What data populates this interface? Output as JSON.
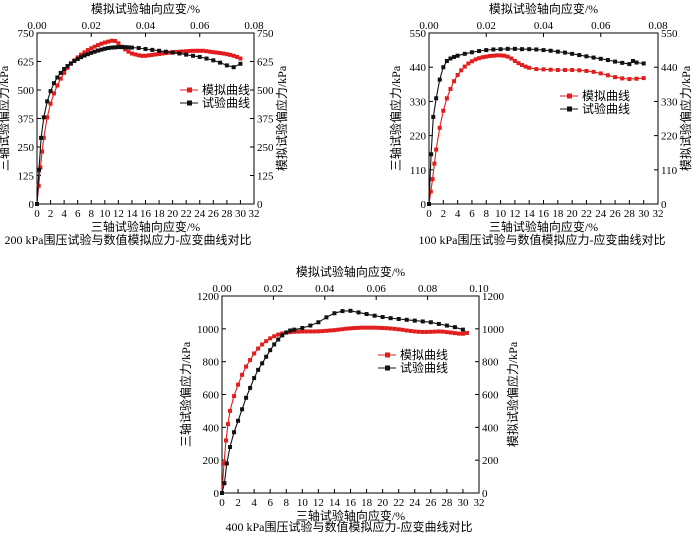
{
  "colors": {
    "simulated": "#e21d1d",
    "experimental": "#111111",
    "axis": "#000000"
  },
  "chart_data": [
    {
      "type": "line",
      "caption": "200 kPa围压试验与数值模拟应力-应变曲线对比",
      "xlabel": "三轴试验轴向应变/%",
      "ylabel": "三轴试验偏应力/kPa",
      "x2label": "模拟试验轴向应变/%",
      "y2label": "模拟试验偏应力/kPa",
      "xlim": [
        0,
        32
      ],
      "ylim": [
        0,
        750
      ],
      "x2lim": [
        0,
        0.08
      ],
      "xticks": [
        "0",
        "2",
        "4",
        "6",
        "8",
        "10",
        "12",
        "14",
        "16",
        "18",
        "20",
        "22",
        "24",
        "26",
        "28",
        "30",
        "32"
      ],
      "yticks": [
        "0",
        "125",
        "250",
        "375",
        "500",
        "625",
        "750"
      ],
      "x2ticks": [
        "0.00",
        "0.02",
        "0.04",
        "0.06",
        "0.08"
      ],
      "y2ticks": [
        "0",
        "125",
        "250",
        "375",
        "500",
        "625",
        "750"
      ],
      "legend_position": "right",
      "series": [
        {
          "name": "模拟曲线",
          "color": "#e21d1d",
          "x": [
            0,
            0.25,
            0.5,
            0.75,
            1,
            1.5,
            2,
            2.5,
            3,
            3.5,
            4,
            4.5,
            5,
            5.5,
            6,
            6.5,
            7,
            7.5,
            8,
            8.5,
            9,
            9.5,
            10,
            10.5,
            11,
            11.5,
            12,
            12.5,
            13,
            13.5,
            14,
            14.5,
            15,
            15.5,
            16,
            16.5,
            17,
            17.5,
            18,
            18.5,
            19,
            19.5,
            20,
            20.5,
            21,
            21.5,
            22,
            22.5,
            23,
            23.5,
            24,
            24.5,
            25,
            25.5,
            26,
            26.5,
            27,
            27.5,
            28,
            28.5,
            29,
            29.5,
            30
          ],
          "y": [
            0,
            80,
            160,
            230,
            290,
            380,
            440,
            485,
            520,
            550,
            575,
            597,
            615,
            630,
            643,
            655,
            665,
            675,
            683,
            690,
            697,
            703,
            708,
            712,
            716,
            715,
            705,
            690,
            678,
            668,
            660,
            656,
            652,
            650,
            650,
            652,
            654,
            656,
            658,
            660,
            662,
            664,
            666,
            667,
            668,
            669,
            670,
            671,
            672,
            672,
            672,
            672,
            670,
            668,
            666,
            664,
            662,
            660,
            657,
            654,
            650,
            645,
            638
          ]
        },
        {
          "name": "试验曲线",
          "color": "#111111",
          "x": [
            0,
            0.3,
            0.6,
            1,
            1.5,
            2,
            2.5,
            3,
            3.5,
            4,
            4.5,
            5,
            5.5,
            6,
            6.5,
            7,
            7.5,
            8,
            8.5,
            9,
            9.5,
            10,
            10.5,
            11,
            11.5,
            12,
            12.5,
            13,
            13.5,
            14,
            15,
            16,
            17,
            18,
            19,
            20,
            21,
            22,
            23,
            24,
            25,
            26,
            27,
            28,
            29,
            30
          ],
          "y": [
            0,
            150,
            290,
            380,
            450,
            495,
            530,
            555,
            575,
            592,
            605,
            617,
            627,
            636,
            644,
            651,
            657,
            663,
            668,
            673,
            677,
            681,
            684,
            686,
            687,
            688,
            688,
            688,
            687,
            686,
            684,
            680,
            676,
            672,
            668,
            664,
            660,
            655,
            650,
            645,
            638,
            630,
            620,
            608,
            600,
            615
          ]
        }
      ]
    },
    {
      "type": "line",
      "caption": "100 kPa围压试验与数值模拟应力-应变曲线对比",
      "xlabel": "三轴试验轴向应变/%",
      "ylabel": "三轴试验偏应力/kPa",
      "x2label": "模拟试验轴向应变/%",
      "y2label": "模拟试验偏应力/kPa",
      "xlim": [
        0,
        32
      ],
      "ylim": [
        0,
        550
      ],
      "x2lim": [
        0,
        0.08
      ],
      "xticks": [
        "0",
        "2",
        "4",
        "6",
        "8",
        "10",
        "12",
        "14",
        "16",
        "18",
        "20",
        "22",
        "24",
        "26",
        "28",
        "30",
        "32"
      ],
      "yticks": [
        "0",
        "110",
        "220",
        "330",
        "440",
        "550"
      ],
      "x2ticks": [
        "0.00",
        "0.02",
        "0.04",
        "0.06",
        "0.08"
      ],
      "y2ticks": [
        "0",
        "110",
        "220",
        "330",
        "440",
        "550"
      ],
      "legend_position": "right",
      "series": [
        {
          "name": "模拟曲线",
          "color": "#e21d1d",
          "x": [
            0,
            0.25,
            0.5,
            0.75,
            1,
            1.5,
            2,
            2.5,
            3,
            3.5,
            4,
            4.5,
            5,
            5.5,
            6,
            6.5,
            7,
            7.5,
            8,
            8.5,
            9,
            9.5,
            10,
            10.5,
            11,
            11.5,
            12,
            12.5,
            13,
            13.5,
            14,
            15,
            16,
            17,
            18,
            19,
            20,
            21,
            22,
            23,
            24,
            25,
            26,
            27,
            28,
            29,
            30
          ],
          "y": [
            0,
            40,
            80,
            130,
            175,
            245,
            300,
            340,
            370,
            395,
            415,
            430,
            442,
            452,
            459,
            465,
            469,
            472,
            474,
            476,
            477,
            478,
            478,
            477,
            474,
            468,
            460,
            453,
            447,
            442,
            438,
            434,
            433,
            432,
            431,
            431,
            431,
            430,
            428,
            425,
            420,
            414,
            408,
            404,
            402,
            403,
            405
          ]
        },
        {
          "name": "试验曲线",
          "color": "#111111",
          "x": [
            0,
            0.3,
            0.6,
            1,
            1.5,
            2,
            2.5,
            3,
            3.5,
            4,
            5,
            6,
            7,
            8,
            9,
            10,
            11,
            12,
            13,
            14,
            15,
            16,
            17,
            18,
            19,
            20,
            21,
            22,
            23,
            24,
            25,
            26,
            27,
            28,
            28.5,
            29,
            30
          ],
          "y": [
            0,
            160,
            280,
            340,
            400,
            440,
            460,
            468,
            473,
            477,
            483,
            488,
            492,
            495,
            497,
            498,
            499,
            499,
            498,
            498,
            497,
            495,
            493,
            490,
            487,
            483,
            479,
            475,
            471,
            467,
            463,
            458,
            454,
            450,
            460,
            455,
            452
          ]
        }
      ]
    },
    {
      "type": "line",
      "caption": "400 kPa围压试验与数值模拟应力-应变曲线对比",
      "xlabel": "三轴试验轴向应变/%",
      "ylabel": "三轴试验偏应力/kPa",
      "x2label": "模拟试验轴向应变/%",
      "y2label": "模拟试验偏应力/kPa",
      "xlim": [
        0,
        32
      ],
      "ylim": [
        0,
        1200
      ],
      "x2lim": [
        0,
        0.1
      ],
      "xticks": [
        "0",
        "2",
        "4",
        "6",
        "8",
        "10",
        "12",
        "14",
        "16",
        "18",
        "20",
        "22",
        "24",
        "26",
        "28",
        "30",
        "32"
      ],
      "yticks": [
        "0",
        "200",
        "400",
        "600",
        "800",
        "1000",
        "1200"
      ],
      "x2ticks": [
        "0.00",
        "0.02",
        "0.04",
        "0.06",
        "0.08",
        "0.10"
      ],
      "y2ticks": [
        "0",
        "200",
        "400",
        "600",
        "800",
        "1000",
        "1200"
      ],
      "legend_position": "right",
      "series": [
        {
          "name": "模拟曲线",
          "color": "#e21d1d",
          "x": [
            0,
            0.25,
            0.5,
            0.75,
            1,
            1.5,
            2,
            2.5,
            3,
            3.5,
            4,
            4.5,
            5,
            5.5,
            6,
            6.5,
            7,
            7.5,
            8,
            8.5,
            9,
            9.5,
            10,
            10.5,
            11,
            11.5,
            12,
            12.5,
            13,
            13.5,
            14,
            14.5,
            15,
            15.5,
            16,
            16.5,
            17,
            17.5,
            18,
            18.5,
            19,
            19.5,
            20,
            20.5,
            21,
            21.5,
            22,
            22.5,
            23,
            23.5,
            24,
            24.5,
            25,
            25.5,
            26,
            26.5,
            27,
            27.5,
            28,
            28.5,
            29,
            29.5,
            30,
            30.5
          ],
          "y": [
            0,
            180,
            320,
            420,
            500,
            590,
            660,
            720,
            770,
            810,
            850,
            880,
            905,
            925,
            942,
            955,
            965,
            972,
            977,
            980,
            982,
            983,
            984,
            984,
            984,
            984,
            985,
            986,
            988,
            990,
            992,
            995,
            998,
            1001,
            1003,
            1005,
            1006,
            1007,
            1007,
            1007,
            1007,
            1006,
            1005,
            1004,
            1002,
            1000,
            997,
            994,
            990,
            987,
            984,
            982,
            981,
            981,
            982,
            983,
            984,
            983,
            980,
            977,
            974,
            971,
            970,
            975
          ]
        },
        {
          "name": "试验曲线",
          "color": "#111111",
          "x": [
            0,
            0.3,
            0.6,
            1,
            1.5,
            2,
            2.5,
            3,
            3.5,
            4,
            4.5,
            5,
            5.5,
            6,
            6.5,
            7,
            7.5,
            8,
            8.5,
            9,
            10,
            11,
            12,
            13,
            14,
            15,
            16,
            17,
            18,
            19,
            20,
            21,
            22,
            23,
            24,
            25,
            26,
            27,
            28,
            29,
            30
          ],
          "y": [
            0,
            60,
            180,
            280,
            370,
            440,
            510,
            580,
            640,
            700,
            750,
            790,
            830,
            870,
            905,
            935,
            960,
            978,
            990,
            995,
            1005,
            1020,
            1040,
            1070,
            1095,
            1108,
            1110,
            1100,
            1090,
            1080,
            1072,
            1065,
            1060,
            1055,
            1050,
            1045,
            1040,
            1030,
            1020,
            1010,
            995
          ]
        }
      ]
    }
  ]
}
